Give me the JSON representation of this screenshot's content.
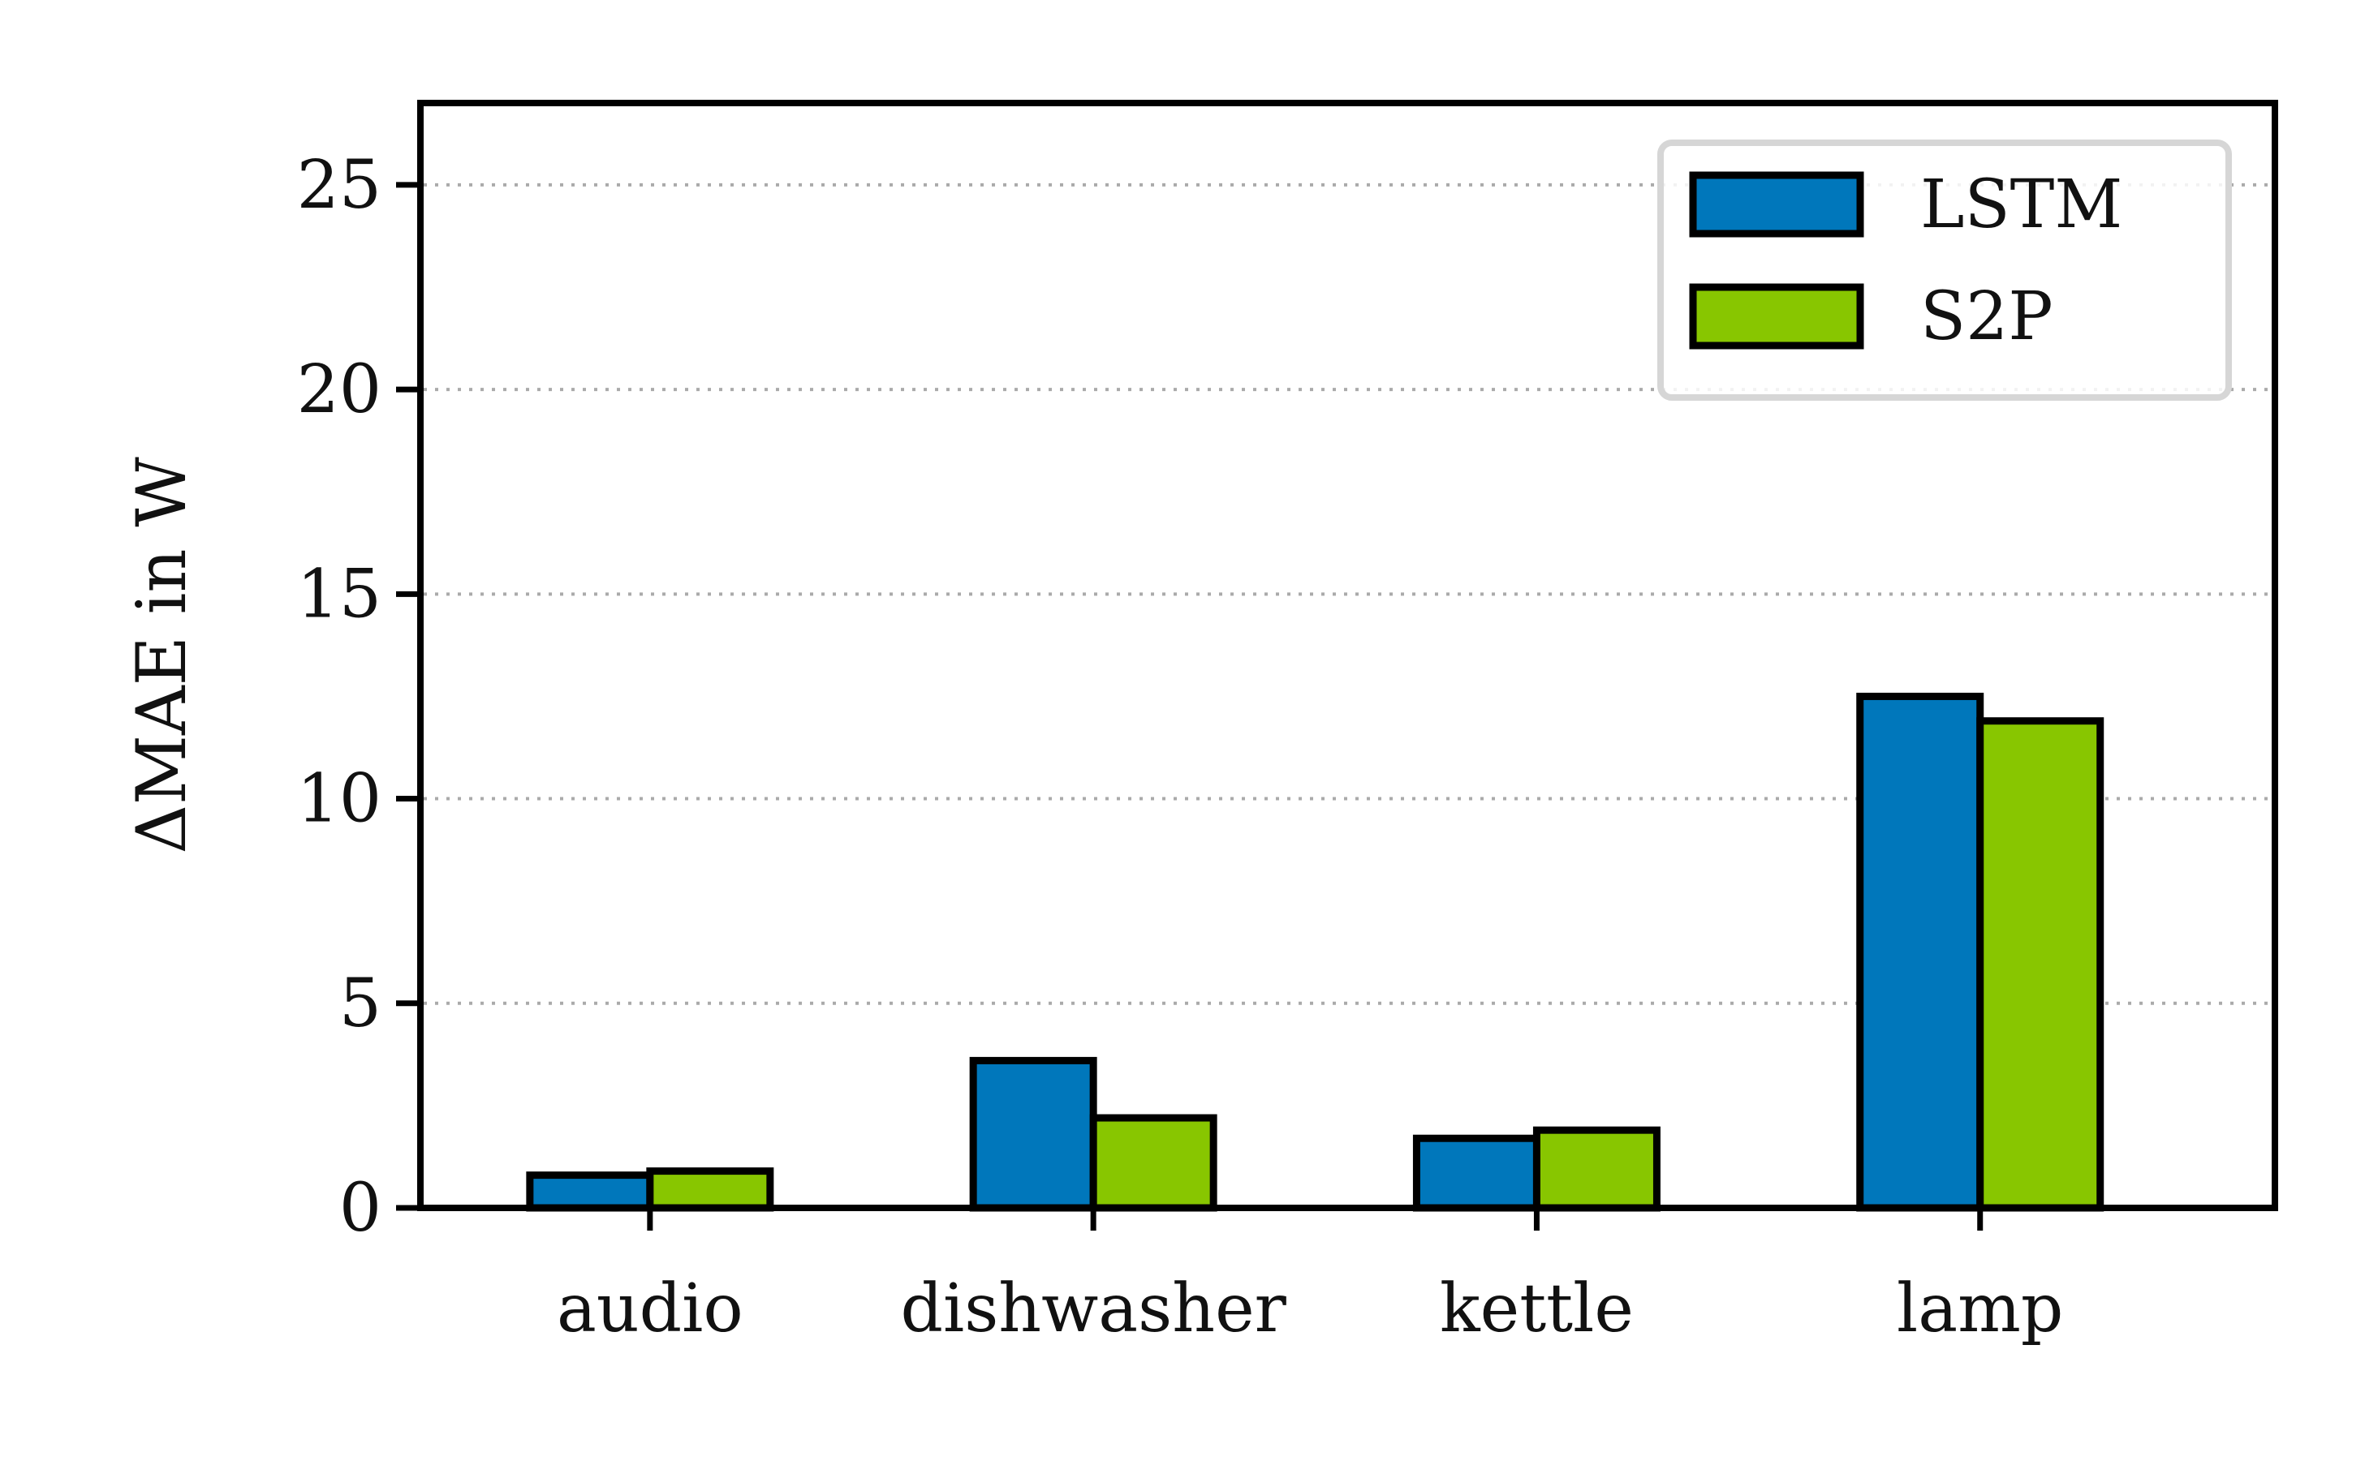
{
  "chart_data": {
    "type": "bar",
    "categories": [
      "audio",
      "dishwasher",
      "kettle",
      "lamp"
    ],
    "series": [
      {
        "name": "LSTM",
        "color": "#0077BB",
        "values": [
          0.8,
          3.6,
          1.7,
          12.5
        ]
      },
      {
        "name": "S2P",
        "color": "#88C600",
        "values": [
          0.9,
          2.2,
          1.9,
          11.9
        ]
      }
    ],
    "xlabel": "",
    "ylabel": "ΔMAE in W",
    "ylim": [
      0,
      27
    ],
    "yticks": [
      0,
      5,
      10,
      15,
      20,
      25
    ],
    "grid": "horizontal, dotted",
    "legend_position": "top-right"
  }
}
